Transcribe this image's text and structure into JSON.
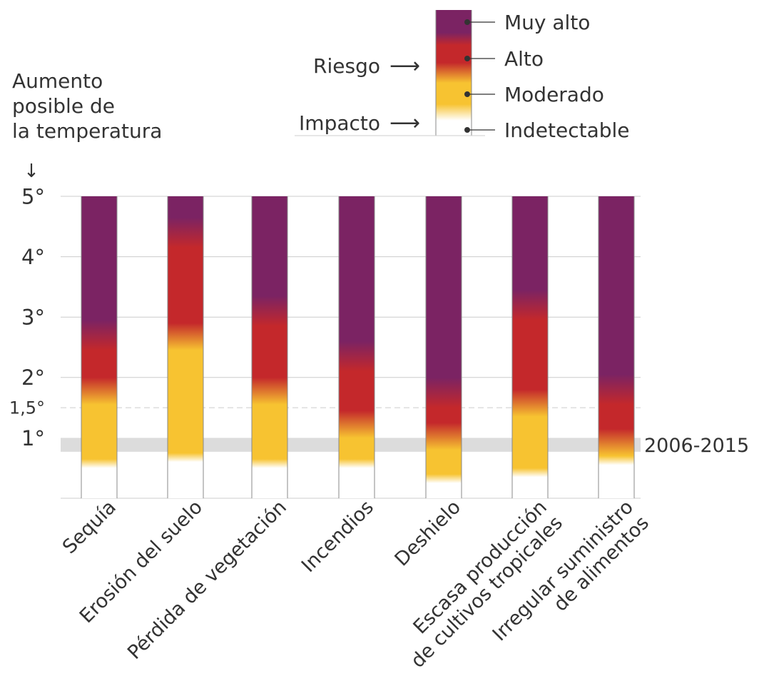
{
  "colors": {
    "muy_alto": "#7b2363",
    "alto": "#c4282b",
    "moderado": "#f7c331",
    "indetectable": "#ffffff",
    "grid": "#cccccc",
    "band": "#dcdcdc",
    "text": "#333333"
  },
  "chart_data": {
    "type": "bar",
    "ylabel_lines": [
      "Aumento",
      "posible de",
      "la temperatura"
    ],
    "ylabel_arrow": "↓",
    "ylim": [
      0,
      5
    ],
    "y_ticks": [
      {
        "value": 5,
        "label": "5°",
        "style": "solid"
      },
      {
        "value": 4,
        "label": "4°",
        "style": "solid"
      },
      {
        "value": 3,
        "label": "3°",
        "style": "solid"
      },
      {
        "value": 2,
        "label": "2°",
        "style": "solid"
      },
      {
        "value": 1.5,
        "label": "1,5°",
        "style": "dashed"
      },
      {
        "value": 1,
        "label": "1°",
        "style": "none"
      }
    ],
    "reference_band": {
      "from": 0.77,
      "to": 1.0,
      "label": "2006-2015"
    },
    "legend": {
      "levels": [
        "Muy alto",
        "Alto",
        "Moderado",
        "Indetectable"
      ],
      "arrows": [
        {
          "label": "Riesgo",
          "arrow": "⟶"
        },
        {
          "label": "Impacto",
          "arrow": "⟶"
        }
      ]
    },
    "categories": [
      {
        "lines": [
          "Sequía"
        ],
        "moderate_from": 0.6,
        "high_from": 1.9,
        "very_high_from": 2.8
      },
      {
        "lines": [
          "Erosión del suelo"
        ],
        "moderate_from": 0.7,
        "high_from": 2.8,
        "very_high_from": 4.5
      },
      {
        "lines": [
          "Pérdida de vegetación"
        ],
        "moderate_from": 0.6,
        "high_from": 1.9,
        "very_high_from": 3.2
      },
      {
        "lines": [
          "Incendios"
        ],
        "moderate_from": 0.6,
        "high_from": 1.35,
        "very_high_from": 2.45
      },
      {
        "lines": [
          "Deshielo"
        ],
        "moderate_from": 0.35,
        "high_from": 1.15,
        "very_high_from": 1.85
      },
      {
        "lines": [
          "Escasa producción",
          "de cultivos tropicales"
        ],
        "moderate_from": 0.45,
        "high_from": 1.7,
        "very_high_from": 3.3
      },
      {
        "lines": [
          "Irregular suministro",
          "de alimentos"
        ],
        "moderate_from": 0.65,
        "high_from": 1.05,
        "very_high_from": 1.9
      }
    ]
  }
}
